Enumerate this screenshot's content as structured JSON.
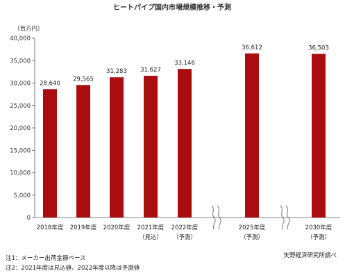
{
  "chart_data": {
    "type": "bar",
    "title": "ヒートパイプ国内市場規模推移・予測",
    "unit_label": "（百万円）",
    "categories": [
      [
        "2018年度"
      ],
      [
        "2019年度"
      ],
      [
        "2020年度"
      ],
      [
        "2021年度",
        "（見込）"
      ],
      [
        "2022年度",
        "（予測）"
      ],
      [
        "2025年度",
        "（予測）"
      ],
      [
        "2030年度",
        "（予測）"
      ]
    ],
    "values": [
      28640,
      29565,
      31283,
      31627,
      33146,
      36612,
      36503
    ],
    "data_labels": [
      "28,640",
      "29,565",
      "31,283",
      "31,627",
      "33,146",
      "36,612",
      "36,503"
    ],
    "ylim": [
      0,
      40000
    ],
    "yticks": [
      "0",
      "5,000",
      "10,000",
      "15,000",
      "20,000",
      "25,000",
      "30,000",
      "35,000",
      "40,000"
    ],
    "axis_breaks": "between 2022年度 and 2025年度, and between 2025年度 and 2030年度",
    "bar_color": "#aa0d10",
    "grid": false,
    "legend": "none"
  },
  "notes": [
    "注1：メーカー出荷金額ベース",
    "注2：2021年度は見込値、2022年度以降は予測値"
  ],
  "source": "矢野経済研究所調べ"
}
